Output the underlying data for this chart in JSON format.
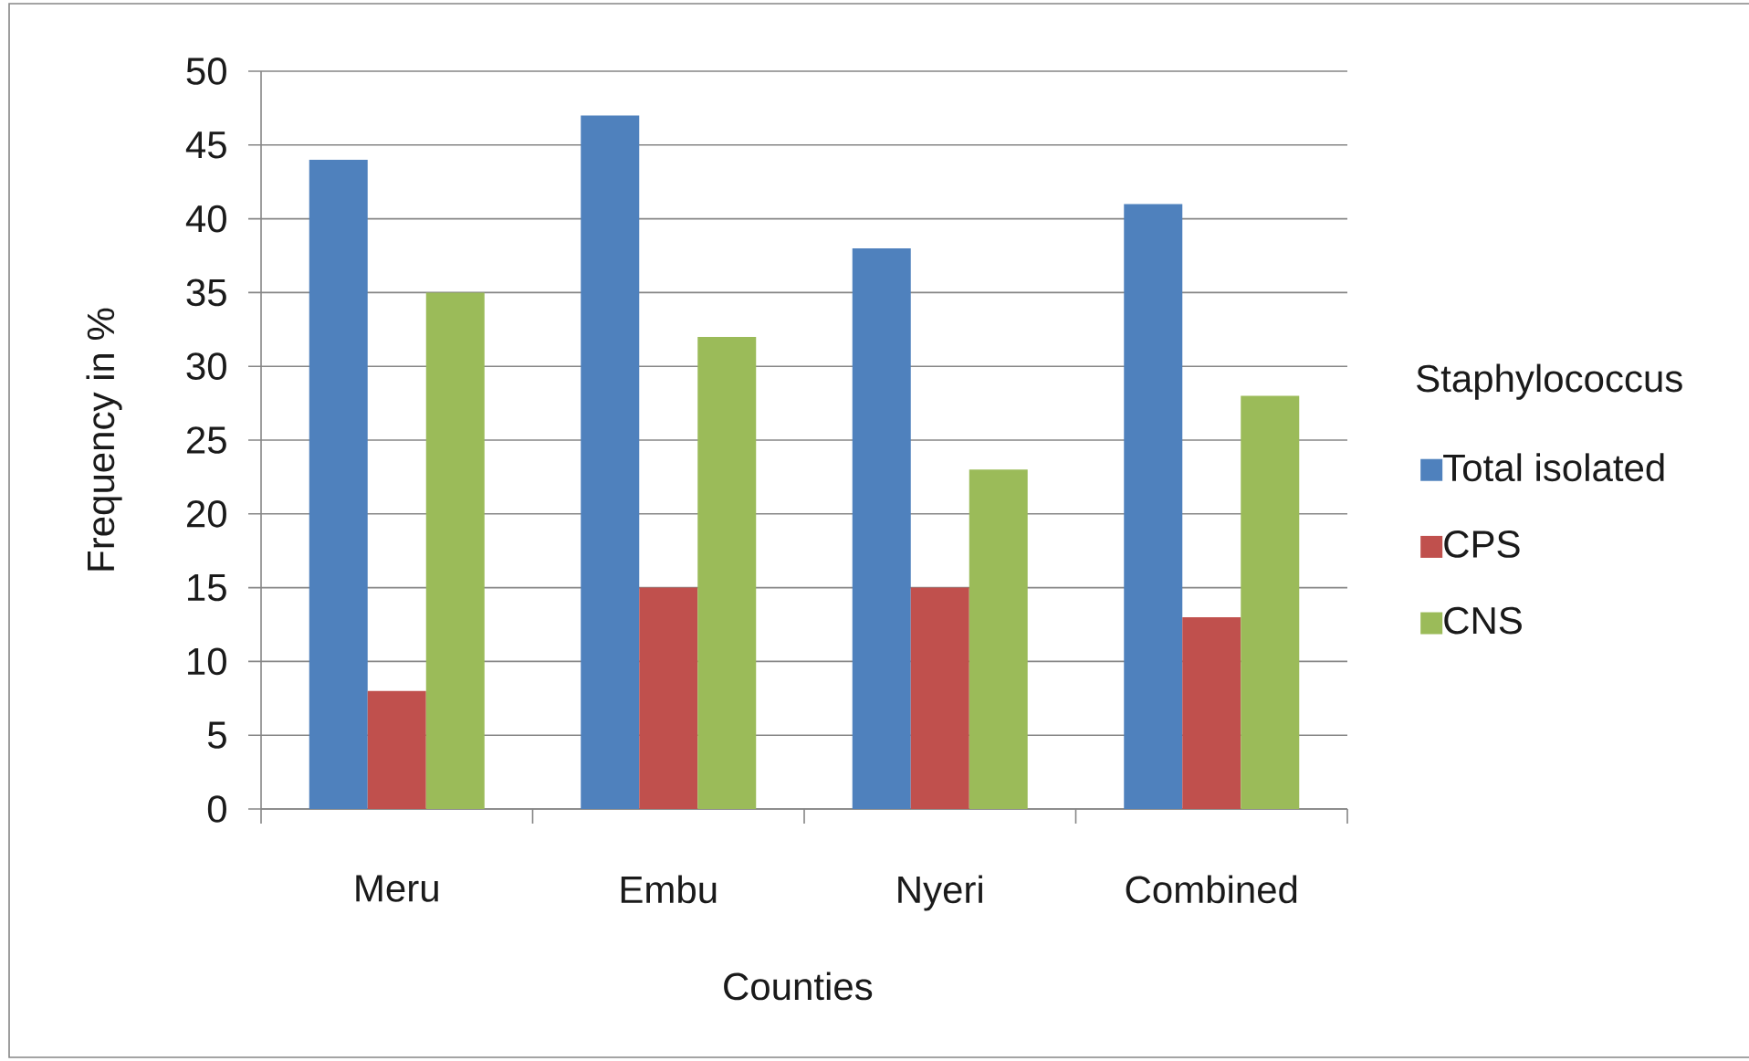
{
  "chart_data": {
    "type": "bar",
    "xlabel": "Counties",
    "ylabel": "Frequency in %",
    "legend_title": "Staphylococcus",
    "categories": [
      "Meru",
      "Embu",
      "Nyeri",
      "Combined"
    ],
    "series": [
      {
        "name": "Total isolated",
        "color": "#4f81bd",
        "values": [
          44,
          47,
          38,
          41
        ]
      },
      {
        "name": "CPS",
        "color": "#c0504d",
        "values": [
          8,
          15,
          15,
          13
        ]
      },
      {
        "name": "CNS",
        "color": "#9bbb59",
        "values": [
          35,
          32,
          23,
          28
        ]
      }
    ],
    "ylim": [
      0,
      50
    ],
    "yticks": [
      0,
      5,
      10,
      15,
      20,
      25,
      30,
      35,
      40,
      45,
      50
    ],
    "grid": "y",
    "legend": "right"
  }
}
